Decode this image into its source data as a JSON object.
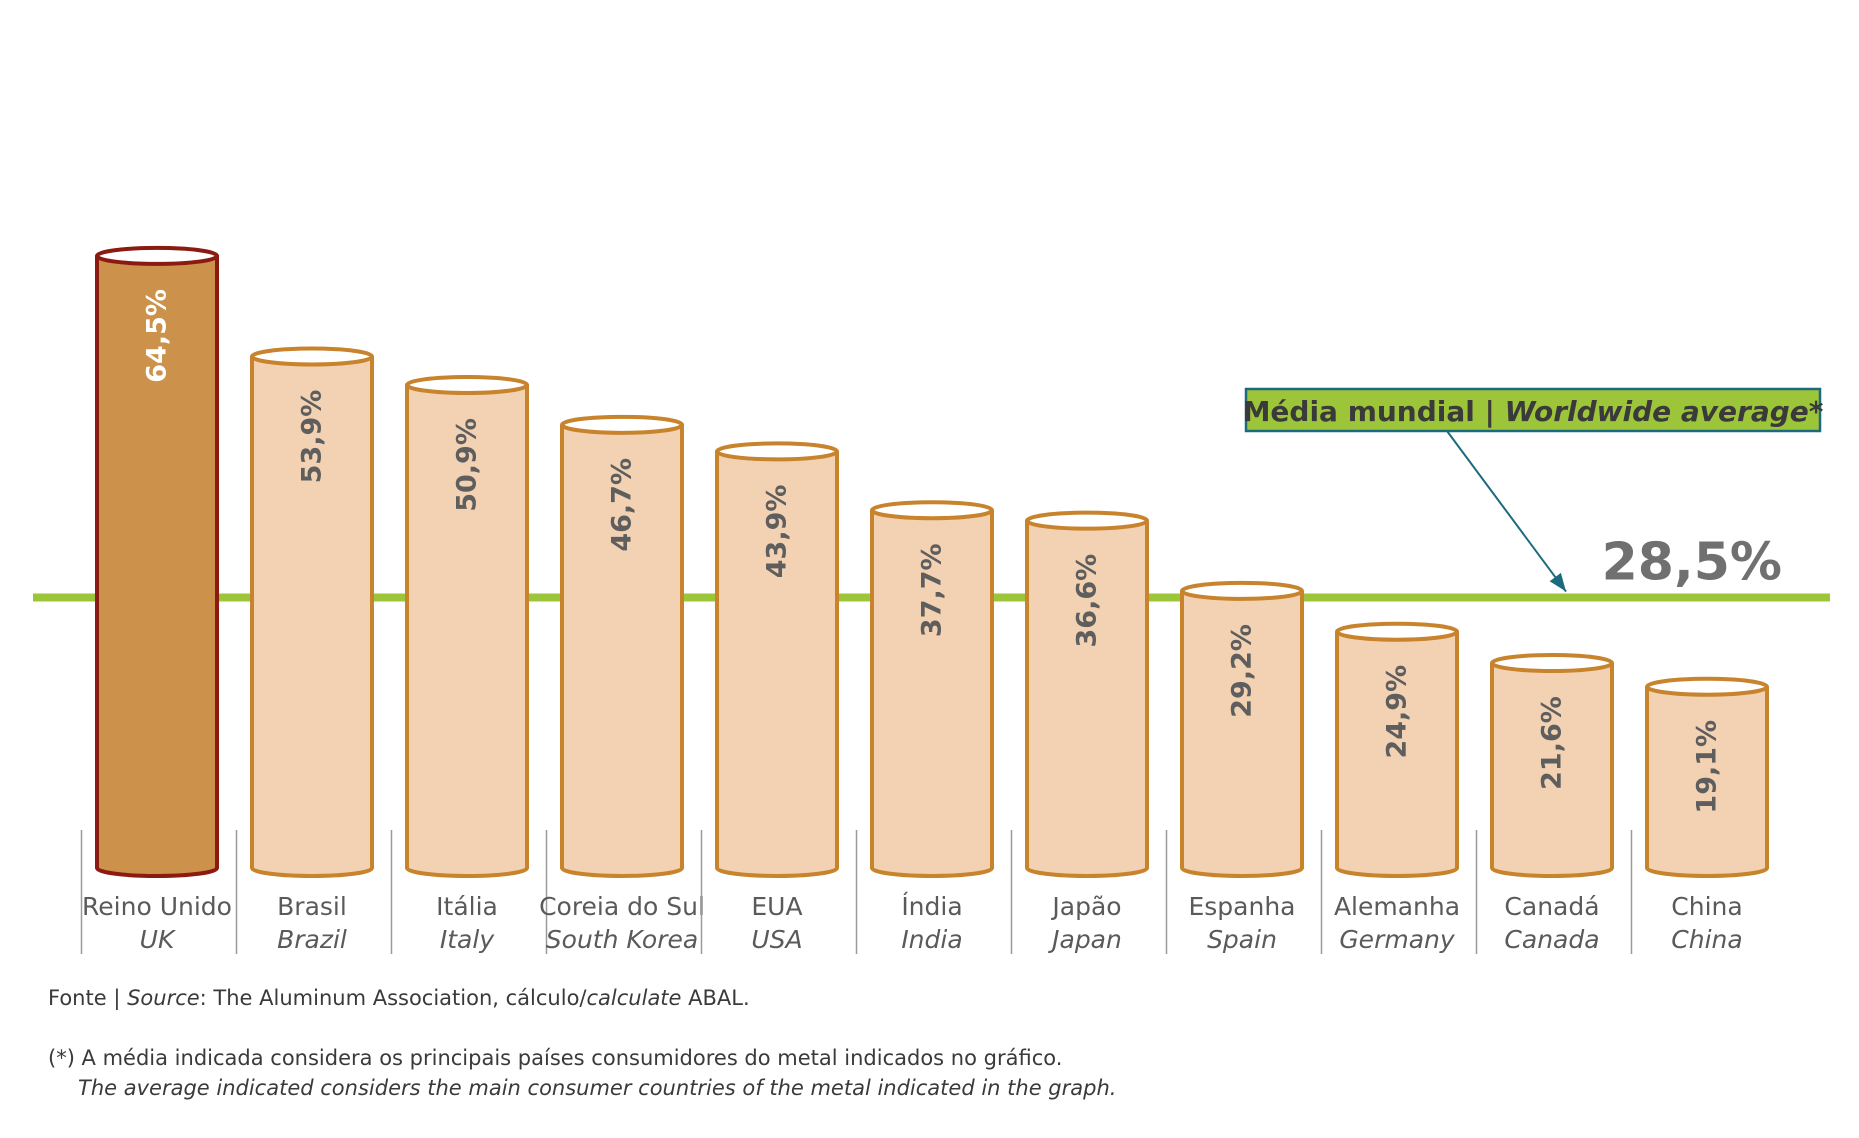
{
  "chart_data": {
    "type": "bar",
    "categories": [
      {
        "pt": "Reino Unido",
        "en": "UK"
      },
      {
        "pt": "Brasil",
        "en": "Brazil"
      },
      {
        "pt": "Itália",
        "en": "Italy"
      },
      {
        "pt": "Coreia do Sul",
        "en": "South Korea"
      },
      {
        "pt": "EUA",
        "en": "USA"
      },
      {
        "pt": "Índia",
        "en": "India"
      },
      {
        "pt": "Japão",
        "en": "Japan"
      },
      {
        "pt": "Espanha",
        "en": "Spain"
      },
      {
        "pt": "Alemanha",
        "en": "Germany"
      },
      {
        "pt": "Canadá",
        "en": "Canada"
      },
      {
        "pt": "China",
        "en": "China"
      }
    ],
    "values": [
      64.5,
      53.9,
      50.9,
      46.7,
      43.9,
      37.7,
      36.6,
      29.2,
      24.9,
      21.6,
      19.1
    ],
    "value_labels": [
      "64,5%",
      "53,9%",
      "50,9%",
      "46,7%",
      "43,9%",
      "37,7%",
      "36,6%",
      "29,2%",
      "24,9%",
      "21,6%",
      "19,1%"
    ],
    "average": {
      "value": 28.5,
      "label": "28,5%",
      "box_text_pt": "Média mundial | ",
      "box_text_en": "Worldwide average",
      "box_text_suffix": "*"
    },
    "colors": {
      "highlight_fill": "#CC924B",
      "highlight_stroke": "#8B1A10",
      "bar_fill": "#F3D2B3",
      "bar_stroke": "#C8832D",
      "average_line": "#9DC53A",
      "average_box_fill": "#9DC53A",
      "average_box_stroke": "#1C6A7E",
      "arrow": "#1C6A7E"
    },
    "ylim": [
      0,
      70
    ],
    "grid": false
  },
  "footnotes": {
    "source_label_pt": "Fonte | ",
    "source_label_en": "Source",
    "source_text": ": The Aluminum Association, cálculo/",
    "source_calc_en": "calculate",
    "source_end": " ABAL.",
    "note_pt": "(*) A média indicada considera os principais países consumidores do metal indicados no gráfico.",
    "note_en": "The average indicated considers the main consumer countries of the metal indicated in the graph."
  }
}
